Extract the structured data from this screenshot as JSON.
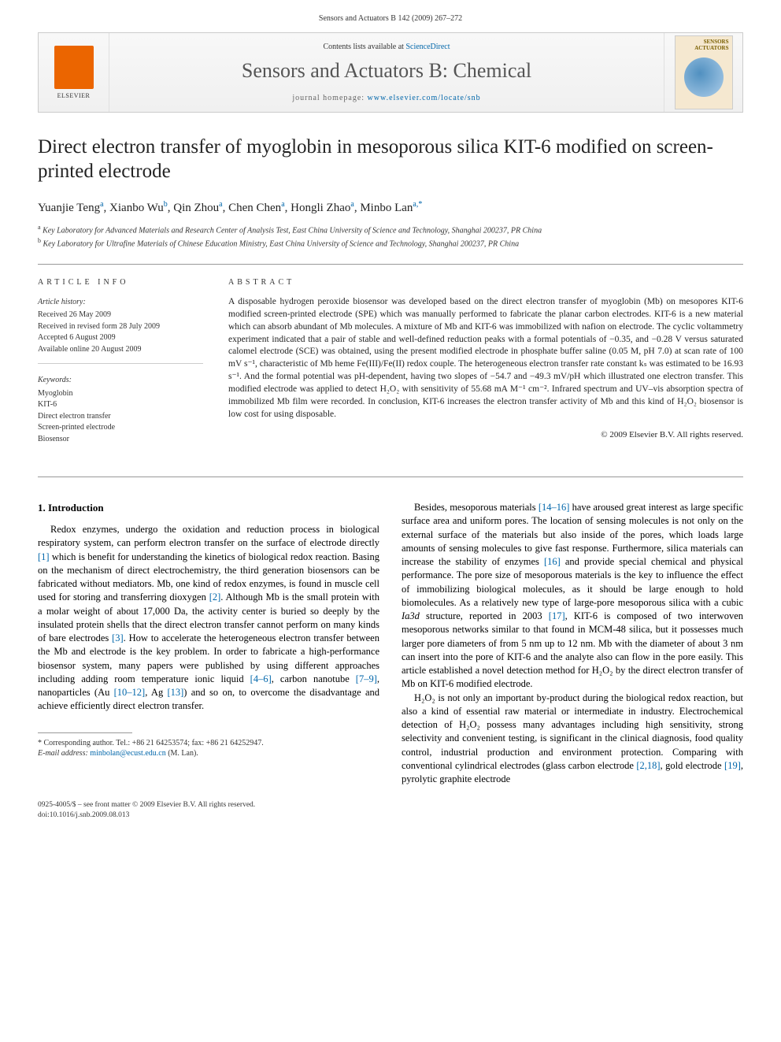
{
  "header": {
    "running_head": "Sensors and Actuators B 142 (2009) 267–272"
  },
  "banner": {
    "contents_prefix": "Contents lists available at ",
    "contents_link": "ScienceDirect",
    "journal_name": "Sensors and Actuators B: Chemical",
    "homepage_prefix": "journal homepage: ",
    "homepage_url": "www.elsevier.com/locate/snb",
    "publisher": "ELSEVIER",
    "cover_title": "SENSORS\nACTUATORS"
  },
  "article": {
    "title": "Direct electron transfer of myoglobin in mesoporous silica KIT-6 modified on screen-printed electrode",
    "authors_html": "Yuanjie Teng<sup>a</sup>, Xianbo Wu<sup>b</sup>, Qin Zhou<sup>a</sup>, Chen Chen<sup>a</sup>, Hongli Zhao<sup>a</sup>, Minbo Lan<sup>a,*</sup>",
    "affiliations": [
      "a Key Laboratory for Advanced Materials and Research Center of Analysis Test, East China University of Science and Technology, Shanghai 200237, PR China",
      "b Key Laboratory for Ultrafine Materials of Chinese Education Ministry, East China University of Science and Technology, Shanghai 200237, PR China"
    ]
  },
  "article_info": {
    "heading": "article info",
    "history_label": "Article history:",
    "history": [
      "Received 26 May 2009",
      "Received in revised form 28 July 2009",
      "Accepted 6 August 2009",
      "Available online 20 August 2009"
    ],
    "keywords_label": "Keywords:",
    "keywords": [
      "Myoglobin",
      "KIT-6",
      "Direct electron transfer",
      "Screen-printed electrode",
      "Biosensor"
    ]
  },
  "abstract": {
    "heading": "abstract",
    "text": "A disposable hydrogen peroxide biosensor was developed based on the direct electron transfer of myoglobin (Mb) on mesopores KIT-6 modified screen-printed electrode (SPE) which was manually performed to fabricate the planar carbon electrodes. KIT-6 is a new material which can absorb abundant of Mb molecules. A mixture of Mb and KIT-6 was immobilized with nafion on electrode. The cyclic voltammetry experiment indicated that a pair of stable and well-defined reduction peaks with a formal potentials of −0.35, and −0.28 V versus saturated calomel electrode (SCE) was obtained, using the present modified electrode in phosphate buffer saline (0.05 M, pH 7.0) at scan rate of 100 mV s⁻¹, characteristic of Mb heme Fe(III)/Fe(II) redox couple. The heterogeneous electron transfer rate constant kₛ was estimated to be 16.93 s⁻¹. And the formal potential was pH-dependent, having two slopes of −54.7 and −49.3 mV/pH which illustrated one electron transfer. This modified electrode was applied to detect H₂O₂ with sensitivity of 55.68 mA M⁻¹ cm⁻². Infrared spectrum and UV–vis absorption spectra of immobilized Mb film were recorded. In conclusion, KIT-6 increases the electron transfer activity of Mb and this kind of H₂O₂ biosensor is low cost for using disposable.",
    "copyright": "© 2009 Elsevier B.V. All rights reserved."
  },
  "body": {
    "section_number": "1.",
    "section_title": "Introduction",
    "col1_p1_html": "Redox enzymes, undergo the oxidation and reduction process in biological respiratory system, can perform electron transfer on the surface of electrode directly <span class='ref-link'>[1]</span> which is benefit for understanding the kinetics of biological redox reaction. Basing on the mechanism of direct electrochemistry, the third generation biosensors can be fabricated without mediators. Mb, one kind of redox enzymes, is found in muscle cell used for storing and transferring dioxygen <span class='ref-link'>[2]</span>. Although Mb is the small protein with a molar weight of about 17,000 Da, the activity center is buried so deeply by the insulated protein shells that the direct electron transfer cannot perform on many kinds of bare electrodes <span class='ref-link'>[3]</span>. How to accelerate the heterogeneous electron transfer between the Mb and electrode is the key problem. In order to fabricate a high-performance biosensor system, many papers were published by using different approaches including adding room temperature ionic liquid <span class='ref-link'>[4–6]</span>, carbon nanotube <span class='ref-link'>[7–9]</span>, nanoparticles (Au <span class='ref-link'>[10–12]</span>, Ag <span class='ref-link'>[13]</span>) and so on, to overcome the disadvantage and achieve efficiently direct electron transfer.",
    "col2_p1_html": "Besides, mesoporous materials <span class='ref-link'>[14–16]</span> have aroused great interest as large specific surface area and uniform pores. The location of sensing molecules is not only on the external surface of the materials but also inside of the pores, which loads large amounts of sensing molecules to give fast response. Furthermore, silica materials can increase the stability of enzymes <span class='ref-link'>[16]</span> and provide special chemical and physical performance. The pore size of mesoporous materials is the key to influence the effect of immobilizing biological molecules, as it should be large enough to hold biomolecules. As a relatively new type of large-pore mesoporous silica with a cubic <i>Ia3d</i> structure, reported in 2003 <span class='ref-link'>[17]</span>, KIT-6 is composed of two interwoven mesoporous networks similar to that found in MCM-48 silica, but it possesses much larger pore diameters of from 5 nm up to 12 nm. Mb with the diameter of about 3 nm can insert into the pore of KIT-6 and the analyte also can flow in the pore easily. This article established a novel detection method for H₂O₂ by the direct electron transfer of Mb on KIT-6 modified electrode.",
    "col2_p2_html": "H₂O₂ is not only an important by-product during the biological redox reaction, but also a kind of essential raw material or intermediate in industry. Electrochemical detection of H₂O₂ possess many advantages including high sensitivity, strong selectivity and convenient testing, is significant in the clinical diagnosis, food quality control, industrial production and environment protection. Comparing with conventional cylindrical electrodes (glass carbon electrode <span class='ref-link'>[2,18]</span>, gold electrode <span class='ref-link'>[19]</span>, pyrolytic graphite electrode"
  },
  "footnotes": {
    "corresponding": "* Corresponding author. Tel.: +86 21 64253574; fax: +86 21 64252947.",
    "email_label": "E-mail address: ",
    "email": "minbolan@ecust.edu.cn",
    "email_suffix": " (M. Lan)."
  },
  "footer": {
    "issn_line": "0925-4005/$ – see front matter © 2009 Elsevier B.V. All rights reserved.",
    "doi_line": "doi:10.1016/j.snb.2009.08.013"
  },
  "colors": {
    "link": "#0066aa",
    "elsevier_orange": "#eb6500",
    "text": "#222222",
    "muted": "#666666"
  }
}
